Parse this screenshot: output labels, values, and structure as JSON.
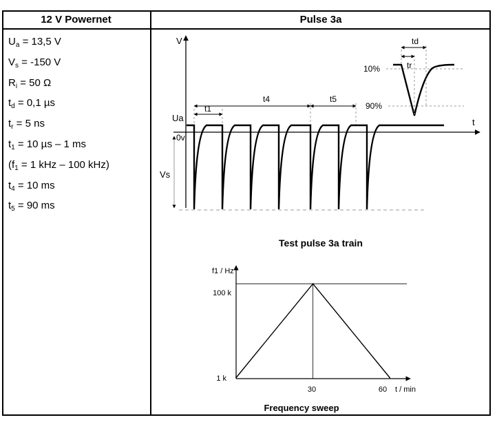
{
  "table": {
    "left_header": "12 V Powernet",
    "right_header": "Pulse 3a"
  },
  "parameters": [
    {
      "main": "U",
      "sub": "a",
      "rest": " = 13,5 V"
    },
    {
      "main": "V",
      "sub": "s",
      "rest": " = -150 V"
    },
    {
      "main": "R",
      "sub": "i",
      "rest": " = 50 Ω"
    },
    {
      "main": "t",
      "sub": "d",
      "rest": " = 0,1 µs"
    },
    {
      "main": "t",
      "sub": "r",
      "rest": " = 5 ns"
    },
    {
      "main": "t",
      "sub": "1",
      "rest": " = 10 µs – 1 ms"
    },
    {
      "main": "(f",
      "sub": "1",
      "rest": " = 1 kHz – 100 kHz)"
    },
    {
      "main": "t",
      "sub": "4",
      "rest": " = 10 ms"
    },
    {
      "main": "t",
      "sub": "5",
      "rest": " = 90 ms"
    }
  ],
  "pulse_diagram": {
    "title": "Test pulse 3a train",
    "y_axis_label": "V",
    "x_axis_label": "t",
    "level_labels": {
      "ua": "Ua",
      "zero": "0v",
      "vs": "Vs"
    },
    "interval_labels": {
      "t1": "t1",
      "t4": "t4",
      "t5": "t5",
      "td": "td",
      "tr": "tr"
    },
    "percent_labels": {
      "p10": "10%",
      "p90": "90%"
    },
    "burst_sizes": [
      4,
      3
    ]
  },
  "chart_data": {
    "type": "line",
    "title": "Frequency sweep",
    "ylabel": "f1 / Hz",
    "xlabel": "t / min",
    "x": [
      0,
      30,
      60
    ],
    "y": [
      1,
      100,
      1
    ],
    "x_ticks": [
      "30",
      "60"
    ],
    "y_ticks": [
      "1 k",
      "100 k"
    ],
    "xlim": [
      0,
      68
    ],
    "ylim": [
      0,
      119
    ],
    "reference_lines": {
      "y_at_100k": true,
      "x_at_30": true
    }
  }
}
